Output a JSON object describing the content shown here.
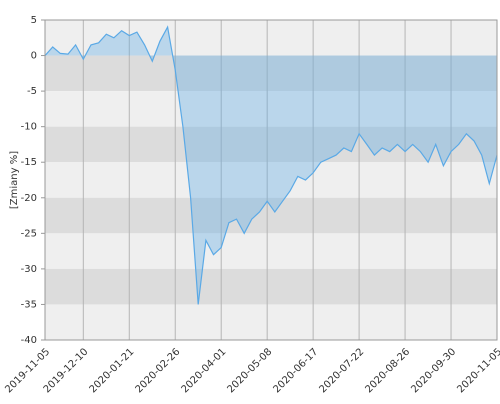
{
  "chart_data": {
    "type": "area",
    "y_label": "[Zmiany %]",
    "x": [
      "2019-11-05",
      "2019-11-12",
      "2019-11-19",
      "2019-11-26",
      "2019-12-03",
      "2019-12-10",
      "2019-12-17",
      "2019-12-24",
      "2019-12-31",
      "2020-01-07",
      "2020-01-14",
      "2020-01-21",
      "2020-01-28",
      "2020-02-04",
      "2020-02-11",
      "2020-02-18",
      "2020-02-21",
      "2020-02-26",
      "2020-03-04",
      "2020-03-11",
      "2020-03-17",
      "2020-03-20",
      "2020-03-25",
      "2020-04-01",
      "2020-04-08",
      "2020-04-16",
      "2020-04-23",
      "2020-04-29",
      "2020-05-05",
      "2020-05-08",
      "2020-05-15",
      "2020-05-22",
      "2020-05-29",
      "2020-06-05",
      "2020-06-11",
      "2020-06-17",
      "2020-06-24",
      "2020-07-01",
      "2020-07-08",
      "2020-07-14",
      "2020-07-17",
      "2020-07-22",
      "2020-07-29",
      "2020-08-05",
      "2020-08-12",
      "2020-08-19",
      "2020-08-21",
      "2020-08-26",
      "2020-09-02",
      "2020-09-09",
      "2020-09-16",
      "2020-09-21",
      "2020-09-25",
      "2020-09-30",
      "2020-10-07",
      "2020-10-14",
      "2020-10-21",
      "2020-10-27",
      "2020-10-30",
      "2020-11-05"
    ],
    "series": [
      {
        "color": "#5aa9e6",
        "values": [
          0,
          1.2,
          0.3,
          0.2,
          1.5,
          -0.5,
          1.5,
          1.8,
          3,
          2.5,
          3.5,
          2.8,
          3.3,
          1.5,
          -0.8,
          2,
          4,
          -2,
          -10,
          -20,
          -35,
          -26,
          -28,
          -27,
          -23.5,
          -23,
          -25,
          -23,
          -22,
          -20.5,
          -22,
          -20.5,
          -19,
          -17,
          -17.5,
          -16.5,
          -15,
          -14.5,
          -14,
          -13,
          -13.5,
          -11,
          -12.5,
          -14,
          -13,
          -13.5,
          -12.5,
          -13.5,
          -12.5,
          -13.5,
          -15,
          -12.5,
          -15.5,
          -13.5,
          -12.5,
          -11,
          -12,
          -14,
          -18,
          -14
        ]
      }
    ],
    "ylim": [
      -40,
      5
    ],
    "yticks": [
      5,
      0,
      -5,
      -10,
      -15,
      -20,
      -25,
      -30,
      -35,
      -40
    ],
    "xticks": [
      "2019-11-05",
      "2019-12-10",
      "2020-01-21",
      "2020-02-26",
      "2020-04-01",
      "2020-05-08",
      "2020-06-17",
      "2020-07-22",
      "2020-08-26",
      "2020-09-30",
      "2020-11-05"
    ],
    "grid": true
  }
}
